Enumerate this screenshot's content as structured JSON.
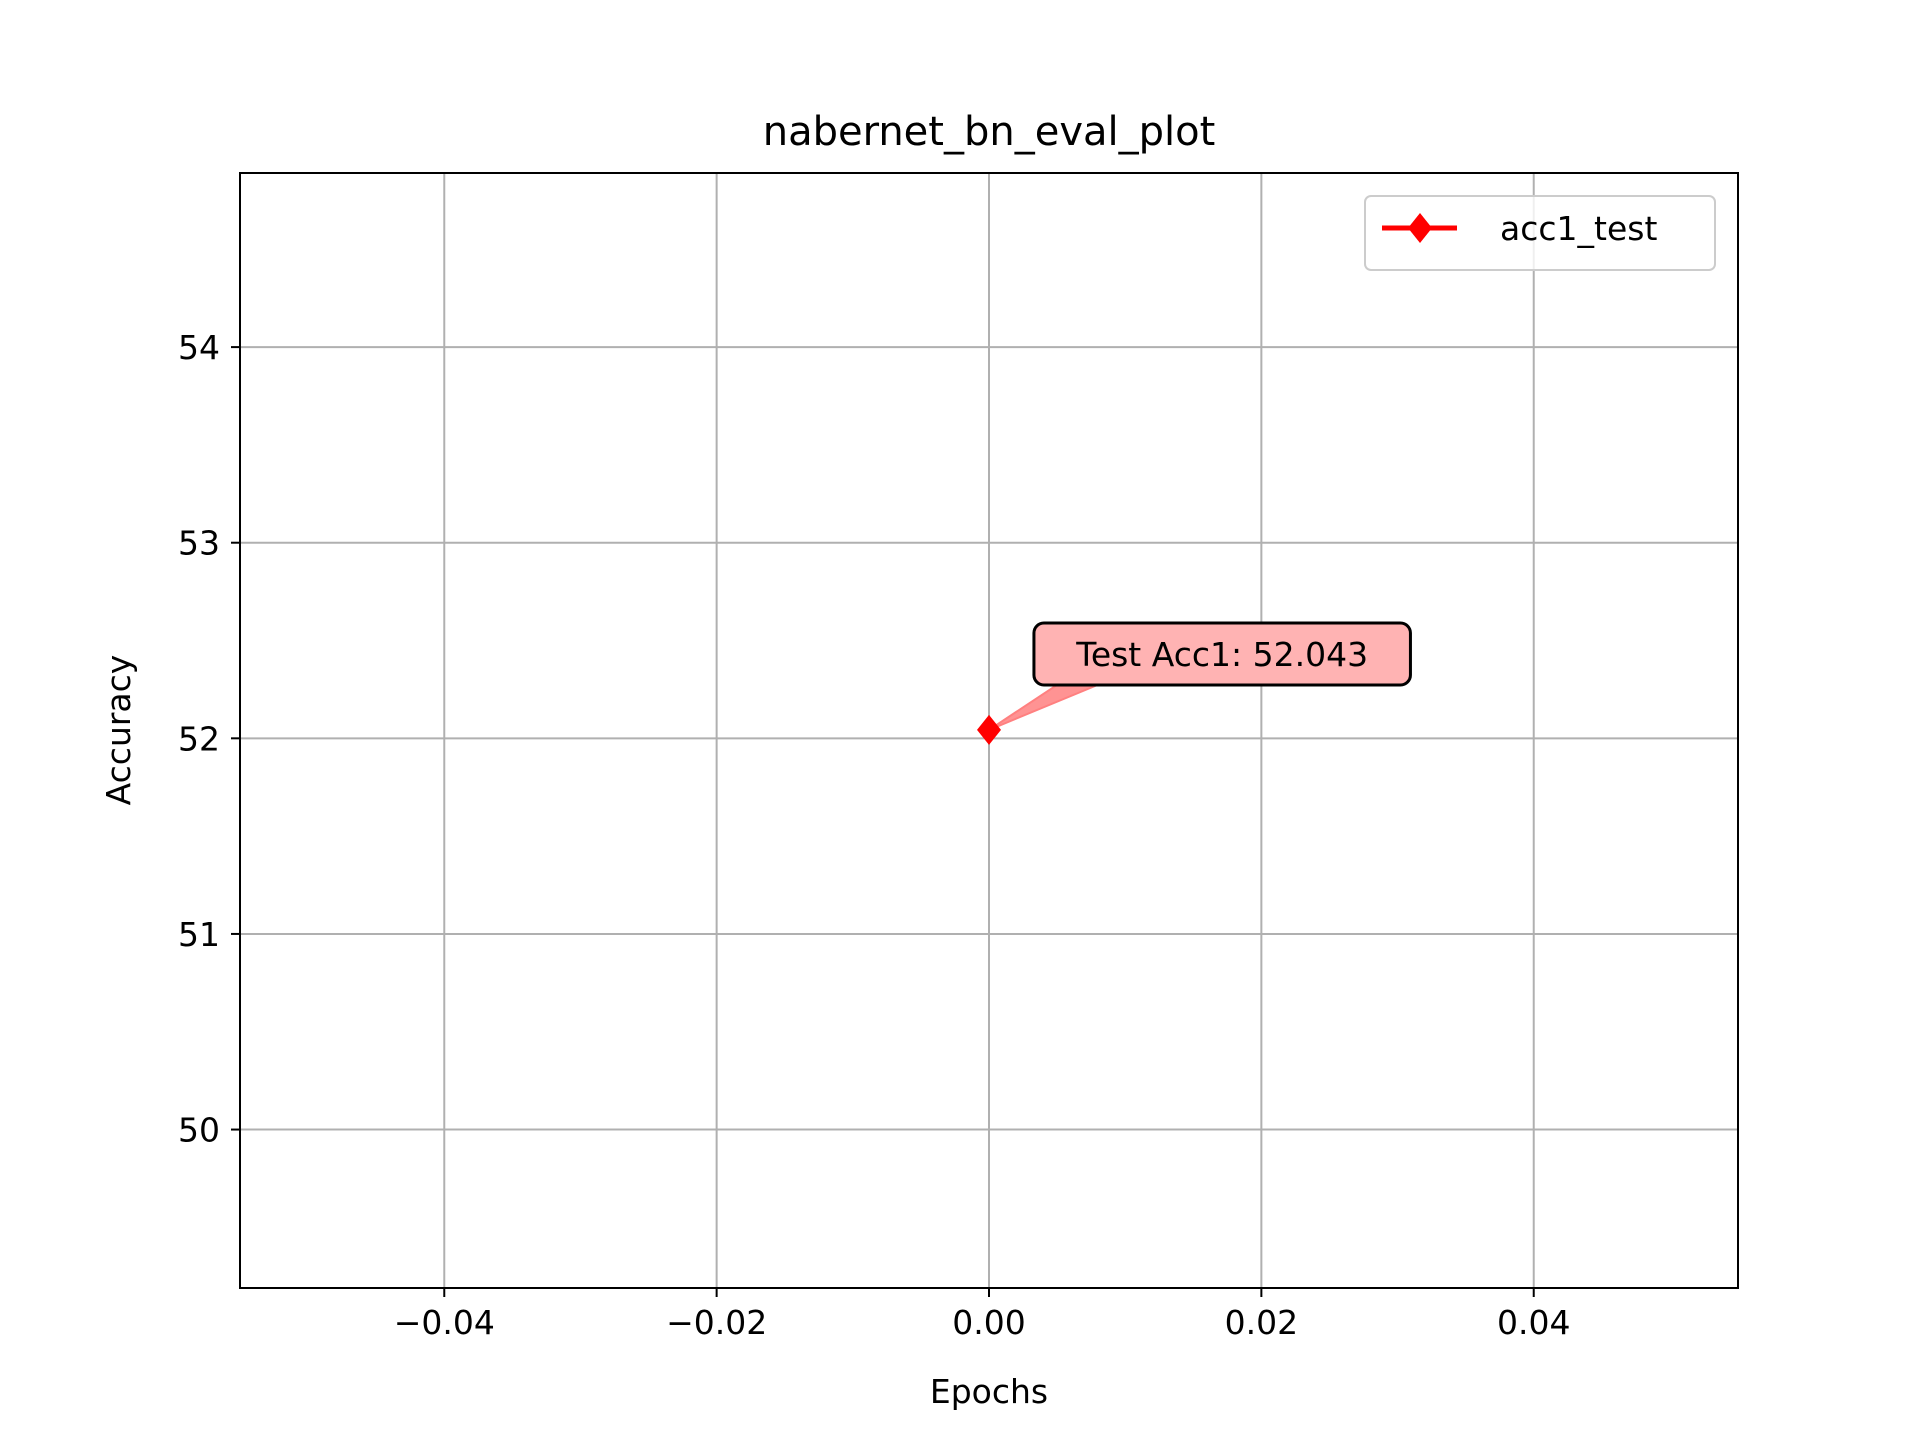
{
  "chart_data": {
    "type": "line",
    "title": "nabernet_bn_eval_plot",
    "xlabel": "Epochs",
    "ylabel": "Accuracy",
    "xlim": [
      -0.055,
      0.055
    ],
    "ylim": [
      49.19,
      54.89
    ],
    "x_ticks": [
      -0.04,
      -0.02,
      0.0,
      0.02,
      0.04
    ],
    "x_tick_labels": [
      "−0.04",
      "−0.02",
      "0.00",
      "0.02",
      "0.04"
    ],
    "y_ticks": [
      50,
      51,
      52,
      53,
      54
    ],
    "y_tick_labels": [
      "50",
      "51",
      "52",
      "53",
      "54"
    ],
    "grid": true,
    "legend_position": "top-right",
    "series": [
      {
        "name": "acc1_test",
        "color": "#ff0000",
        "marker": "diamond",
        "points": [
          {
            "x": 0.0,
            "y": 52.043
          }
        ]
      }
    ],
    "annotations": [
      {
        "text": "Test Acc1: 52.043",
        "point": {
          "x": 0.0,
          "y": 52.043
        },
        "text_at": {
          "x": 0.0033,
          "y": 52.38
        },
        "box_color": "#ffb3b3",
        "arrow_color": "#ff8080"
      }
    ]
  }
}
